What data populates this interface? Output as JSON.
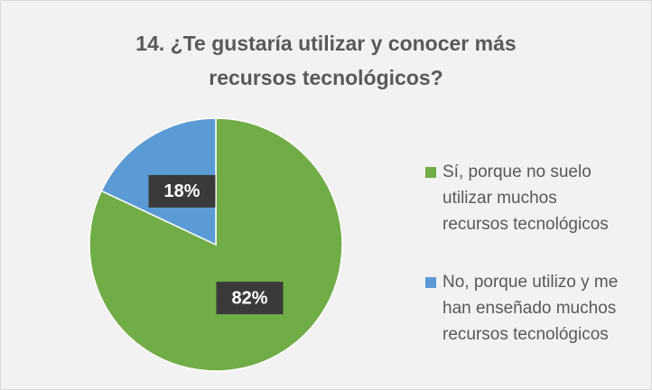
{
  "chart_data": {
    "type": "pie",
    "title": "14. ¿Te gustaría utilizar y conocer más recursos tecnológicos?",
    "categories": [
      "Sí, porque no suelo utilizar muchos recursos tecnológicos",
      "No, porque utilizo y me han enseñado muchos recursos tecnológicos"
    ],
    "values": [
      82,
      18
    ],
    "value_labels": [
      "82%",
      "18%"
    ],
    "colors": [
      "#70ad47",
      "#5b9bd5"
    ],
    "legend": "right"
  }
}
